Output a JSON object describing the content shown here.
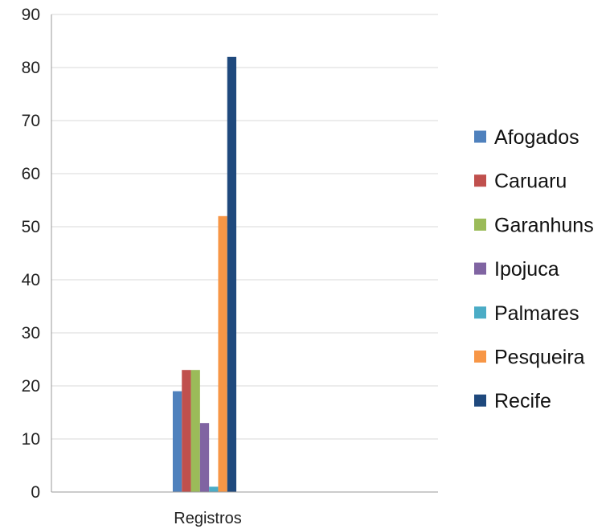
{
  "chart_data": {
    "type": "bar",
    "categories": [
      "Registros"
    ],
    "series": [
      {
        "name": "Afogados",
        "values": [
          19
        ],
        "color": "#4f81bd"
      },
      {
        "name": "Caruaru",
        "values": [
          23
        ],
        "color": "#c0504d"
      },
      {
        "name": "Garanhuns",
        "values": [
          23
        ],
        "color": "#9bbb59"
      },
      {
        "name": "Ipojuca",
        "values": [
          13
        ],
        "color": "#8064a2"
      },
      {
        "name": "Palmares",
        "values": [
          1
        ],
        "color": "#4bacc6"
      },
      {
        "name": "Pesqueira",
        "values": [
          52
        ],
        "color": "#f79646"
      },
      {
        "name": "Recife",
        "values": [
          82
        ],
        "color": "#1f497d"
      }
    ],
    "ylim": [
      0,
      90
    ],
    "yticks": [
      0,
      10,
      20,
      30,
      40,
      50,
      60,
      70,
      80,
      90
    ],
    "grid": true,
    "legend": "right"
  }
}
